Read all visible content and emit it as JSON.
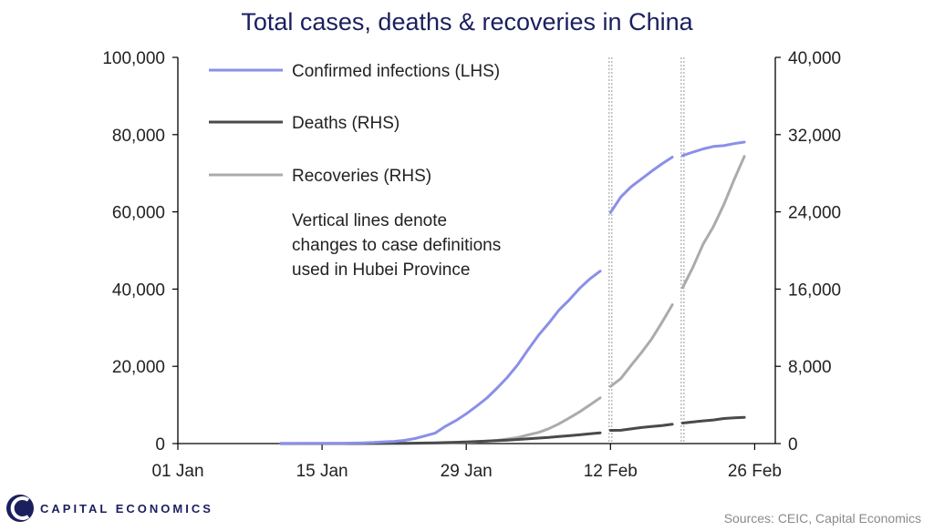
{
  "chart_data": {
    "type": "line",
    "title": "Total cases, deaths & recoveries in China",
    "x_axis": {
      "type": "date",
      "range": [
        "2020-01-01",
        "2020-02-28"
      ],
      "ticks": [
        {
          "date": "2020-01-01",
          "label": "01 Jan"
        },
        {
          "date": "2020-01-15",
          "label": "15 Jan"
        },
        {
          "date": "2020-01-29",
          "label": "29 Jan"
        },
        {
          "date": "2020-02-12",
          "label": "12 Feb"
        },
        {
          "date": "2020-02-26",
          "label": "26 Feb"
        }
      ]
    },
    "y_left": {
      "range": [
        0,
        100000
      ],
      "ticks": [
        0,
        20000,
        40000,
        60000,
        80000,
        100000
      ],
      "tick_labels": [
        "0",
        "20,000",
        "40,000",
        "60,000",
        "80,000",
        "100,000"
      ]
    },
    "y_right": {
      "range": [
        0,
        40000
      ],
      "ticks": [
        0,
        8000,
        16000,
        24000,
        32000,
        40000
      ],
      "tick_labels": [
        "0",
        "8,000",
        "16,000",
        "24,000",
        "32,000",
        "40,000"
      ]
    },
    "grid": false,
    "legend_placement": "top-left",
    "vertical_lines": [
      "2020-02-12",
      "2020-02-19"
    ],
    "note": [
      "Vertical lines denote",
      "changes to case definitions",
      "used in Hubei Province"
    ],
    "series": [
      {
        "name": "Confirmed infections (LHS)",
        "axis": "left",
        "color": "#8a8fe8",
        "segments": [
          [
            [
              "2020-01-11",
              41
            ],
            [
              "2020-01-16",
              45
            ],
            [
              "2020-01-17",
              62
            ],
            [
              "2020-01-18",
              121
            ],
            [
              "2020-01-19",
              198
            ],
            [
              "2020-01-20",
              291
            ],
            [
              "2020-01-21",
              440
            ],
            [
              "2020-01-22",
              571
            ],
            [
              "2020-01-23",
              830
            ],
            [
              "2020-01-24",
              1287
            ],
            [
              "2020-01-25",
              1975
            ],
            [
              "2020-01-26",
              2744
            ],
            [
              "2020-01-27",
              4515
            ],
            [
              "2020-01-28",
              5974
            ],
            [
              "2020-01-29",
              7711
            ],
            [
              "2020-01-30",
              9692
            ],
            [
              "2020-01-31",
              11791
            ],
            [
              "2020-02-01",
              14380
            ],
            [
              "2020-02-02",
              17205
            ],
            [
              "2020-02-03",
              20438
            ],
            [
              "2020-02-04",
              24324
            ],
            [
              "2020-02-05",
              28018
            ],
            [
              "2020-02-06",
              31161
            ],
            [
              "2020-02-07",
              34546
            ],
            [
              "2020-02-08",
              37198
            ],
            [
              "2020-02-09",
              40171
            ],
            [
              "2020-02-10",
              42638
            ],
            [
              "2020-02-11",
              44653
            ]
          ],
          [
            [
              "2020-02-12",
              59804
            ],
            [
              "2020-02-13",
              63851
            ],
            [
              "2020-02-14",
              66492
            ],
            [
              "2020-02-15",
              68500
            ],
            [
              "2020-02-16",
              70548
            ],
            [
              "2020-02-17",
              72436
            ],
            [
              "2020-02-18",
              74185
            ]
          ],
          [
            [
              "2020-02-19",
              74576
            ],
            [
              "2020-02-20",
              75465
            ],
            [
              "2020-02-21",
              76288
            ],
            [
              "2020-02-22",
              76936
            ],
            [
              "2020-02-23",
              77150
            ],
            [
              "2020-02-24",
              77658
            ],
            [
              "2020-02-25",
              78064
            ]
          ]
        ]
      },
      {
        "name": "Deaths (RHS)",
        "axis": "right",
        "color": "#4a4a4a",
        "segments": [
          [
            [
              "2020-01-11",
              1
            ],
            [
              "2020-01-16",
              2
            ],
            [
              "2020-01-20",
              6
            ],
            [
              "2020-01-22",
              17
            ],
            [
              "2020-01-23",
              25
            ],
            [
              "2020-01-24",
              41
            ],
            [
              "2020-01-25",
              56
            ],
            [
              "2020-01-26",
              80
            ],
            [
              "2020-01-27",
              106
            ],
            [
              "2020-01-28",
              132
            ],
            [
              "2020-01-29",
              170
            ],
            [
              "2020-01-30",
              213
            ],
            [
              "2020-01-31",
              259
            ],
            [
              "2020-02-01",
              304
            ],
            [
              "2020-02-02",
              361
            ],
            [
              "2020-02-03",
              425
            ],
            [
              "2020-02-04",
              490
            ],
            [
              "2020-02-05",
              563
            ],
            [
              "2020-02-06",
              636
            ],
            [
              "2020-02-07",
              722
            ],
            [
              "2020-02-08",
              811
            ],
            [
              "2020-02-09",
              908
            ],
            [
              "2020-02-10",
              1016
            ],
            [
              "2020-02-11",
              1113
            ]
          ],
          [
            [
              "2020-02-12",
              1367
            ],
            [
              "2020-02-13",
              1380
            ],
            [
              "2020-02-14",
              1523
            ],
            [
              "2020-02-15",
              1665
            ],
            [
              "2020-02-16",
              1770
            ],
            [
              "2020-02-17",
              1868
            ],
            [
              "2020-02-18",
              2004
            ]
          ],
          [
            [
              "2020-02-19",
              2118
            ],
            [
              "2020-02-20",
              2236
            ],
            [
              "2020-02-21",
              2345
            ],
            [
              "2020-02-22",
              2442
            ],
            [
              "2020-02-23",
              2592
            ],
            [
              "2020-02-24",
              2663
            ],
            [
              "2020-02-25",
              2715
            ]
          ]
        ]
      },
      {
        "name": "Recoveries (RHS)",
        "axis": "right",
        "color": "#ababab",
        "segments": [
          [
            [
              "2020-01-11",
              0
            ],
            [
              "2020-01-20",
              25
            ],
            [
              "2020-01-22",
              28
            ],
            [
              "2020-01-24",
              38
            ],
            [
              "2020-01-26",
              51
            ],
            [
              "2020-01-27",
              60
            ],
            [
              "2020-01-28",
              103
            ],
            [
              "2020-01-29",
              124
            ],
            [
              "2020-01-30",
              171
            ],
            [
              "2020-01-31",
              243
            ],
            [
              "2020-02-01",
              328
            ],
            [
              "2020-02-02",
              475
            ],
            [
              "2020-02-03",
              632
            ],
            [
              "2020-02-04",
              892
            ],
            [
              "2020-02-05",
              1153
            ],
            [
              "2020-02-06",
              1540
            ],
            [
              "2020-02-07",
              2050
            ],
            [
              "2020-02-08",
              2649
            ],
            [
              "2020-02-09",
              3281
            ],
            [
              "2020-02-10",
              3996
            ],
            [
              "2020-02-11",
              4740
            ]
          ],
          [
            [
              "2020-02-12",
              5911
            ],
            [
              "2020-02-13",
              6723
            ],
            [
              "2020-02-14",
              8096
            ],
            [
              "2020-02-15",
              9419
            ],
            [
              "2020-02-16",
              10844
            ],
            [
              "2020-02-17",
              12552
            ],
            [
              "2020-02-18",
              14376
            ]
          ],
          [
            [
              "2020-02-19",
              16155
            ],
            [
              "2020-02-20",
              18264
            ],
            [
              "2020-02-21",
              20659
            ],
            [
              "2020-02-22",
              22482
            ],
            [
              "2020-02-23",
              24734
            ],
            [
              "2020-02-24",
              27323
            ],
            [
              "2020-02-25",
              29745
            ]
          ]
        ]
      }
    ]
  },
  "branding": {
    "logo_letter": "C",
    "name": "CAPITAL ECONOMICS",
    "source": "Sources: CEIC, Capital Economics"
  }
}
